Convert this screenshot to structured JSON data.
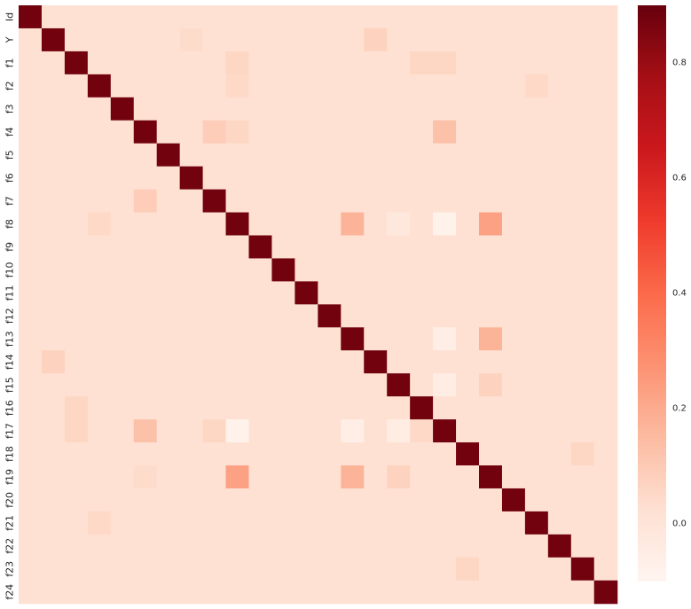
{
  "chart_data": {
    "type": "heatmap",
    "title": "",
    "xlabel": "",
    "ylabel": "",
    "labels": [
      "Id",
      "Y",
      "f1",
      "f2",
      "f3",
      "f4",
      "f5",
      "f6",
      "f7",
      "f8",
      "f9",
      "f10",
      "f11",
      "f12",
      "f13",
      "f14",
      "f15",
      "f16",
      "f17",
      "f18",
      "f19",
      "f20",
      "f21",
      "f22",
      "f23",
      "f24"
    ],
    "base_value": 0.02,
    "diagonal_value": 0.88,
    "off_diagonal": [
      {
        "row": "Y",
        "col": "f14",
        "value": 0.07
      },
      {
        "row": "Y",
        "col": "f6",
        "value": 0.04
      },
      {
        "row": "f1",
        "col": "f8",
        "value": 0.06
      },
      {
        "row": "f1",
        "col": "f16",
        "value": 0.06
      },
      {
        "row": "f1",
        "col": "f17",
        "value": 0.06
      },
      {
        "row": "f2",
        "col": "f8",
        "value": 0.05
      },
      {
        "row": "f2",
        "col": "f21",
        "value": 0.05
      },
      {
        "row": "f4",
        "col": "f7",
        "value": 0.09
      },
      {
        "row": "f4",
        "col": "f8",
        "value": 0.06
      },
      {
        "row": "f4",
        "col": "f17",
        "value": 0.13
      },
      {
        "row": "f8",
        "col": "f13",
        "value": 0.17
      },
      {
        "row": "f8",
        "col": "f17",
        "value": -0.08
      },
      {
        "row": "f8",
        "col": "f19",
        "value": 0.23
      },
      {
        "row": "f8",
        "col": "f15",
        "value": -0.02
      },
      {
        "row": "f13",
        "col": "f17",
        "value": -0.06
      },
      {
        "row": "f13",
        "col": "f19",
        "value": 0.17
      },
      {
        "row": "f15",
        "col": "f17",
        "value": -0.05
      },
      {
        "row": "f15",
        "col": "f19",
        "value": 0.07
      },
      {
        "row": "f17",
        "col": "f1",
        "value": 0.06
      },
      {
        "row": "f17",
        "col": "f4",
        "value": 0.13
      },
      {
        "row": "f17",
        "col": "f7",
        "value": 0.06
      },
      {
        "row": "f17",
        "col": "f8",
        "value": -0.08
      },
      {
        "row": "f17",
        "col": "f13",
        "value": -0.06
      },
      {
        "row": "f17",
        "col": "f15",
        "value": -0.05
      },
      {
        "row": "f17",
        "col": "f16",
        "value": 0.05
      },
      {
        "row": "f19",
        "col": "f8",
        "value": 0.23
      },
      {
        "row": "f19",
        "col": "f13",
        "value": 0.17
      },
      {
        "row": "f19",
        "col": "f15",
        "value": 0.07
      },
      {
        "row": "f14",
        "col": "Y",
        "value": 0.07
      },
      {
        "row": "f7",
        "col": "f4",
        "value": 0.09
      },
      {
        "row": "f16",
        "col": "f1",
        "value": 0.06
      },
      {
        "row": "f18",
        "col": "f23",
        "value": 0.06
      },
      {
        "row": "f23",
        "col": "f18",
        "value": 0.06
      },
      {
        "row": "f19",
        "col": "f4",
        "value": 0.04
      },
      {
        "row": "f21",
        "col": "f2",
        "value": 0.05
      },
      {
        "row": "f8",
        "col": "f2",
        "value": 0.05
      }
    ],
    "colorbar": {
      "min": -0.1,
      "max": 0.9,
      "ticks": [
        "0.0",
        "0.2",
        "0.4",
        "0.6",
        "0.8"
      ],
      "tick_values": [
        0.0,
        0.2,
        0.4,
        0.6,
        0.8
      ],
      "colormap": "Reds",
      "colors": [
        "#fff5f0",
        "#fee0d2",
        "#fcbba1",
        "#fc9272",
        "#fb6a4a",
        "#ef3b2c",
        "#cb181d",
        "#a50f15",
        "#67000d"
      ]
    }
  }
}
